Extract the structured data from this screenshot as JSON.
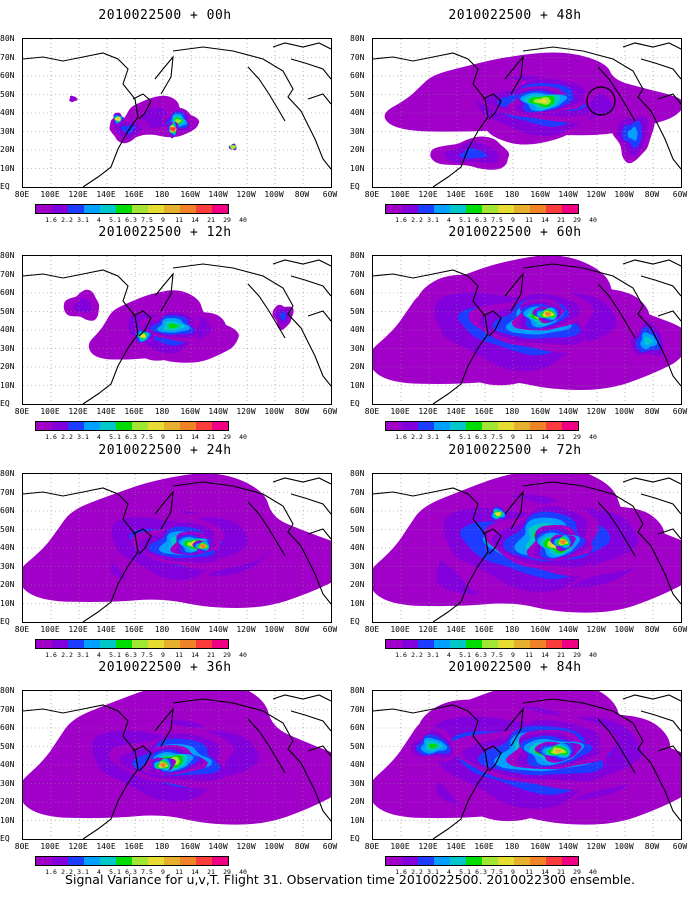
{
  "caption": "Signal Variance for u,v,T. Flight 31. Observation time 2010022500. 2010022300 ensemble.",
  "lat_labels": [
    "80N",
    "70N",
    "60N",
    "50N",
    "40N",
    "30N",
    "20N",
    "10N",
    "EQ"
  ],
  "lon_labels": [
    "80E",
    "100E",
    "120E",
    "140E",
    "160E",
    "180",
    "160W",
    "140W",
    "120W",
    "100W",
    "80W",
    "60W"
  ],
  "colorbar": {
    "tick_labels": [
      "1.6",
      "2.2",
      "3.1",
      "4",
      "5.1",
      "6.3",
      "7.5",
      "9",
      "11",
      "14",
      "21",
      "29",
      "40"
    ],
    "colors": [
      "#a000c8",
      "#8200dc",
      "#1e3cff",
      "#00a0ff",
      "#00c8c8",
      "#00dc00",
      "#a0e632",
      "#e6dc32",
      "#e6af2d",
      "#f08228",
      "#fa3c3c",
      "#f00082"
    ]
  },
  "panels": [
    {
      "title": "2010022500 + 00h"
    },
    {
      "title": "2010022500 + 48h"
    },
    {
      "title": "2010022500 + 12h"
    },
    {
      "title": "2010022500 + 60h"
    },
    {
      "title": "2010022500 + 24h"
    },
    {
      "title": "2010022500 + 72h"
    },
    {
      "title": "2010022500 + 36h"
    },
    {
      "title": "2010022500 + 84h"
    }
  ]
}
